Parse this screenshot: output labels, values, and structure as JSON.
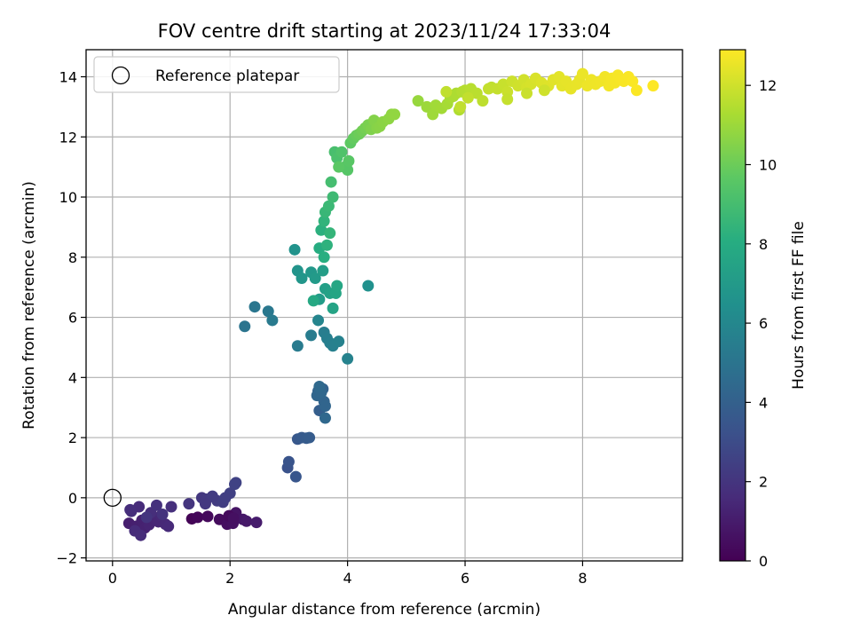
{
  "chart_data": {
    "type": "scatter",
    "title": "FOV centre drift starting at 2023/11/24 17:33:04",
    "xlabel": "Angular distance from reference (arcmin)",
    "ylabel": "Rotation from reference (arcmin)",
    "xlim": [
      -0.45,
      9.7
    ],
    "ylim": [
      -2.1,
      14.9
    ],
    "xticks": [
      0,
      2,
      4,
      6,
      8
    ],
    "yticks": [
      -2,
      0,
      2,
      4,
      6,
      8,
      10,
      12,
      14
    ],
    "grid": true,
    "legend": {
      "position": "top-left",
      "entries": [
        "Reference platepar"
      ]
    },
    "reference_point": {
      "x": 0,
      "y": 0,
      "label": "Reference platepar"
    },
    "colorbar": {
      "label": "Hours from first FF file",
      "colormap": "viridis",
      "range": [
        0,
        12.9
      ],
      "ticks": [
        0,
        2,
        4,
        6,
        8,
        10,
        12
      ]
    },
    "series": [
      {
        "x": [
          1.35,
          1.45,
          1.62,
          1.82,
          1.95,
          2.05,
          2.1,
          2.22,
          2.28,
          2.45,
          1.98,
          2.06,
          0.28,
          0.4,
          0.5,
          0.55,
          0.62,
          0.72,
          0.78,
          0.82,
          0.9,
          0.95,
          0.38,
          0.48,
          0.32,
          0.65,
          1.0,
          0.75,
          0.85,
          0.58,
          1.3,
          1.52,
          1.6,
          1.78,
          1.88,
          2.0,
          2.1,
          1.7,
          1.58,
          1.92,
          2.08,
          0.45,
          0.3,
          2.98,
          3.0,
          3.12,
          3.15,
          3.22,
          3.3,
          3.35,
          3.52,
          3.55,
          3.58,
          3.5,
          3.6,
          3.62,
          3.48,
          3.55,
          3.62,
          3.52,
          2.25,
          2.42,
          2.65,
          2.72,
          3.15,
          3.38,
          3.6,
          3.65,
          3.7,
          3.75,
          3.85,
          4.0,
          3.1,
          3.15,
          3.22,
          3.38,
          3.45,
          3.52,
          3.58,
          3.62,
          3.7,
          3.75,
          3.8,
          3.82,
          4.35,
          3.42,
          3.5,
          3.52,
          3.6,
          3.55,
          3.65,
          3.6,
          3.7,
          3.62,
          3.68,
          3.75,
          3.72,
          3.78,
          3.82,
          3.9,
          3.95,
          4.0,
          4.02,
          3.85,
          4.05,
          4.1,
          4.15,
          4.2,
          4.25,
          4.3,
          4.35,
          4.4,
          4.45,
          4.5,
          4.55,
          4.6,
          4.7,
          4.75,
          4.8,
          5.2,
          5.35,
          5.45,
          5.5,
          5.6,
          5.7,
          5.75,
          5.8,
          5.85,
          5.9,
          5.95,
          6.0,
          6.1,
          6.2,
          6.3,
          6.45,
          5.68,
          5.92,
          6.05,
          6.4,
          6.55,
          6.65,
          6.72,
          6.8,
          6.9,
          7.0,
          7.05,
          7.12,
          7.2,
          7.3,
          7.42,
          7.5,
          7.6,
          6.72,
          7.05,
          7.35,
          7.65,
          7.72,
          7.8,
          7.9,
          7.95,
          8.0,
          8.08,
          8.15,
          8.22,
          8.3,
          8.38,
          8.45,
          8.5,
          8.55,
          8.6,
          8.65,
          8.7,
          8.78,
          8.85,
          8.92,
          9.2
        ],
        "y": [
          -0.7,
          -0.65,
          -0.62,
          -0.72,
          -0.88,
          -0.85,
          -0.5,
          -0.72,
          -0.78,
          -0.82,
          -0.6,
          -0.68,
          -0.85,
          -0.95,
          -0.75,
          -1.0,
          -0.9,
          -0.7,
          -0.8,
          -0.6,
          -0.88,
          -0.95,
          -1.1,
          -1.25,
          -0.45,
          -0.5,
          -0.3,
          -0.25,
          -0.55,
          -0.65,
          -0.2,
          0.0,
          -0.05,
          -0.1,
          -0.15,
          0.15,
          0.5,
          0.05,
          -0.2,
          0.0,
          0.45,
          -0.3,
          -0.4,
          1.0,
          1.2,
          0.7,
          1.95,
          2.0,
          1.98,
          2.0,
          2.9,
          3.5,
          3.62,
          3.55,
          3.2,
          3.05,
          3.4,
          3.5,
          2.65,
          3.7,
          5.7,
          6.35,
          6.2,
          5.9,
          5.05,
          5.4,
          5.5,
          5.3,
          5.15,
          5.05,
          5.2,
          4.62,
          8.25,
          7.55,
          7.3,
          7.5,
          7.3,
          6.6,
          7.55,
          6.95,
          6.8,
          6.3,
          6.8,
          7.05,
          7.05,
          6.55,
          5.9,
          8.3,
          8.0,
          8.9,
          8.4,
          9.2,
          8.8,
          9.5,
          9.7,
          10.0,
          10.5,
          11.5,
          11.3,
          11.5,
          11.0,
          10.9,
          11.2,
          11.0,
          11.8,
          11.95,
          12.05,
          12.1,
          12.2,
          12.3,
          12.4,
          12.25,
          12.55,
          12.3,
          12.35,
          12.5,
          12.6,
          12.75,
          12.75,
          13.2,
          13.0,
          12.75,
          13.05,
          12.95,
          13.1,
          13.3,
          13.35,
          13.45,
          12.9,
          13.5,
          13.55,
          13.6,
          13.45,
          13.2,
          13.65,
          13.5,
          13.0,
          13.3,
          13.6,
          13.6,
          13.75,
          13.5,
          13.85,
          13.7,
          13.9,
          13.65,
          13.75,
          13.95,
          13.8,
          13.7,
          13.9,
          14.0,
          13.25,
          13.45,
          13.55,
          13.7,
          13.85,
          13.6,
          13.75,
          13.9,
          14.1,
          13.7,
          13.9,
          13.75,
          13.85,
          14.0,
          13.7,
          13.95,
          13.8,
          14.05,
          13.9,
          13.85,
          14.0,
          13.85,
          13.55,
          13.7
        ],
        "c": [
          0.1,
          0.2,
          0.3,
          0.4,
          0.5,
          0.6,
          0.7,
          0.8,
          0.9,
          1.0,
          0.35,
          0.55,
          1.1,
          1.15,
          1.2,
          1.25,
          1.3,
          1.35,
          1.4,
          1.45,
          1.5,
          1.55,
          1.6,
          1.65,
          1.7,
          1.75,
          1.8,
          1.85,
          1.9,
          1.95,
          2.0,
          2.1,
          2.2,
          2.3,
          2.4,
          2.5,
          2.6,
          2.25,
          2.15,
          2.45,
          2.55,
          1.62,
          1.68,
          3.3,
          3.4,
          3.5,
          3.6,
          3.7,
          3.75,
          3.8,
          3.9,
          4.0,
          4.1,
          4.15,
          4.2,
          4.25,
          4.3,
          4.35,
          4.4,
          4.45,
          5.0,
          5.1,
          5.2,
          5.3,
          5.35,
          5.4,
          5.45,
          5.5,
          5.55,
          5.6,
          5.65,
          5.7,
          6.6,
          6.7,
          6.8,
          6.9,
          7.0,
          7.1,
          7.2,
          7.3,
          7.4,
          7.5,
          7.6,
          7.7,
          6.5,
          7.8,
          5.9,
          8.0,
          8.1,
          8.2,
          8.3,
          8.4,
          8.5,
          8.6,
          8.7,
          8.8,
          9.0,
          9.1,
          9.2,
          9.3,
          9.4,
          9.5,
          9.55,
          9.6,
          9.7,
          9.8,
          9.9,
          10.0,
          10.1,
          10.2,
          10.3,
          10.4,
          10.5,
          10.55,
          10.6,
          10.65,
          10.7,
          10.75,
          10.8,
          10.9,
          11.0,
          11.05,
          11.1,
          11.15,
          11.2,
          11.25,
          11.3,
          11.35,
          11.4,
          11.45,
          11.5,
          11.55,
          11.6,
          11.65,
          11.7,
          11.72,
          11.74,
          11.76,
          11.78,
          11.8,
          11.85,
          11.9,
          11.95,
          12.0,
          12.05,
          12.1,
          12.15,
          12.2,
          12.25,
          12.3,
          12.35,
          12.4,
          11.82,
          11.9,
          12.0,
          12.42,
          12.45,
          12.48,
          12.5,
          12.52,
          12.55,
          12.58,
          12.6,
          12.62,
          12.65,
          12.68,
          12.7,
          12.72,
          12.74,
          12.76,
          12.78,
          12.8,
          12.82,
          12.84,
          12.86,
          12.9
        ]
      }
    ]
  }
}
